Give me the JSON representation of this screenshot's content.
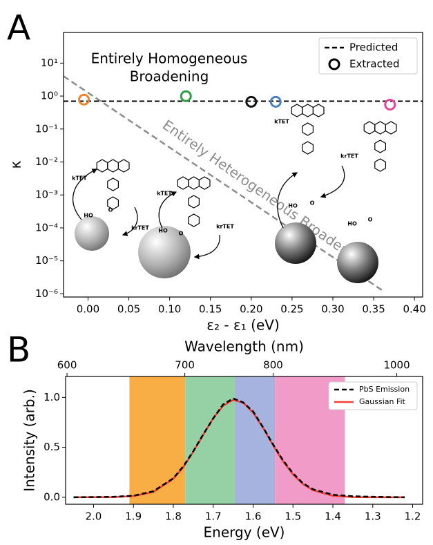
{
  "chart_data": [
    {
      "type": "line",
      "panel": "A",
      "x_label": "ε₂ - ε₁ (eV)",
      "y_label": "κ",
      "xlim": [
        -0.03,
        0.41
      ],
      "ylim": [
        8e-07,
        85
      ],
      "y_log": true,
      "xticks": [
        {
          "value": 0,
          "label": "0.00"
        },
        0.05,
        {
          "value": 0.1,
          "label": "0.10"
        },
        0.15,
        {
          "value": 0.2,
          "label": "0.20"
        },
        0.25,
        {
          "value": 0.3,
          "label": "0.30"
        },
        0.35,
        {
          "value": 0.4,
          "label": "0.40"
        }
      ],
      "yticks": [
        {
          "value": 1e-06,
          "label": "10⁻⁶"
        },
        {
          "value": 1e-05,
          "label": "10⁻⁵"
        },
        {
          "value": 0.0001,
          "label": "10⁻⁴"
        },
        {
          "value": 0.001,
          "label": "10⁻³"
        },
        {
          "value": 0.01,
          "label": "10⁻²"
        },
        {
          "value": 0.1,
          "label": "10⁻¹"
        },
        {
          "value": 1,
          "label": "10⁰"
        },
        {
          "value": 10,
          "label": "10¹"
        }
      ],
      "series": [
        {
          "name": "Predicted",
          "color": "#000000",
          "style": "dashed",
          "x": [
            -0.03,
            0.41
          ],
          "values": [
            0.7,
            0.7
          ]
        },
        {
          "name": "Extracted",
          "color": "#000000",
          "style": "markers",
          "x": [
            -0.005,
            0.12,
            0.2,
            0.23,
            0.37
          ],
          "values": [
            0.78,
            0.99,
            0.67,
            0.67,
            0.55
          ],
          "point_colors": [
            "#f0862a",
            "#2e9e44",
            "#111111",
            "#4a80c0",
            "#e0489c"
          ]
        }
      ],
      "reference_line": {
        "label": "Entirely Heterogeneous Broadening",
        "color": "#8c8c8c",
        "x": [
          -0.03,
          0.36
        ],
        "values": [
          4,
          1.3e-06
        ]
      },
      "annotation": [
        "Entirely Homogeneous",
        "Broadening"
      ],
      "molecule_labels": [
        "kTET",
        "krTET",
        "kTET",
        "krTET",
        "kTET",
        "krTET",
        "HO",
        "O",
        "HO",
        "O",
        "HO",
        "O",
        "HO",
        "O"
      ],
      "legend": "upper right"
    },
    {
      "type": "line",
      "panel": "B",
      "x_label": "Energy (eV)",
      "y_label": "Intensity (arb.)",
      "x2_label": "Wavelength (nm)",
      "xlim": [
        2.07,
        1.175
      ],
      "ylim": [
        -0.07,
        1.21
      ],
      "xticks": [
        {
          "value": 2,
          "label": "2.0"
        },
        1.9,
        1.8,
        1.7,
        1.6,
        1.5,
        1.4,
        1.3,
        1.2
      ],
      "yticks": [
        {
          "value": 0,
          "label": "0.0"
        },
        0.5,
        {
          "value": 1,
          "label": "1.0"
        }
      ],
      "x2ticks": [
        600,
        700,
        800,
        1000
      ],
      "bands": [
        {
          "from": 1.91,
          "to": 1.77,
          "color": "#f8ad45"
        },
        {
          "from": 1.77,
          "to": 1.645,
          "color": "#96d1a6"
        },
        {
          "from": 1.645,
          "to": 1.545,
          "color": "#a7b3df"
        },
        {
          "from": 1.545,
          "to": 1.37,
          "color": "#f19cc8"
        }
      ],
      "series": [
        {
          "name": "PbS Emission",
          "color": "#000000",
          "style": "dashed",
          "x": [
            2.05,
            1.95,
            1.9,
            1.85,
            1.8,
            1.775,
            1.75,
            1.725,
            1.7,
            1.675,
            1.65,
            1.625,
            1.6,
            1.575,
            1.55,
            1.525,
            1.5,
            1.475,
            1.45,
            1.4,
            1.35,
            1.3,
            1.22
          ],
          "values": [
            0.0,
            0.005,
            0.015,
            0.06,
            0.19,
            0.31,
            0.46,
            0.63,
            0.79,
            0.93,
            0.99,
            0.95,
            0.86,
            0.7,
            0.53,
            0.37,
            0.24,
            0.14,
            0.08,
            0.025,
            0.01,
            0.005,
            0.0
          ]
        },
        {
          "name": "Gaussian Fit",
          "color": "#f03c32",
          "style": "solid",
          "x": [
            2.05,
            1.95,
            1.9,
            1.85,
            1.8,
            1.775,
            1.75,
            1.725,
            1.7,
            1.675,
            1.65,
            1.625,
            1.6,
            1.575,
            1.55,
            1.525,
            1.5,
            1.475,
            1.45,
            1.4,
            1.35,
            1.3,
            1.22
          ],
          "values": [
            0.0,
            0.002,
            0.011,
            0.053,
            0.185,
            0.3,
            0.455,
            0.626,
            0.791,
            0.917,
            0.975,
            0.948,
            0.848,
            0.695,
            0.522,
            0.36,
            0.228,
            0.132,
            0.07,
            0.015,
            0.002,
            0.0,
            0.0
          ]
        }
      ],
      "legend": "upper right"
    }
  ]
}
